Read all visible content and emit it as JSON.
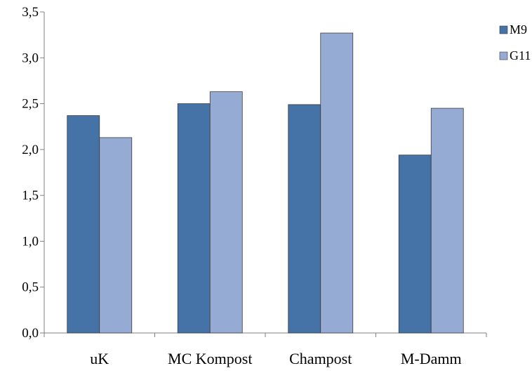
{
  "chart_data": {
    "type": "bar",
    "categories": [
      "uK",
      "MC Kompost",
      "Champost",
      "M-Damm"
    ],
    "series": [
      {
        "name": "M9",
        "values": [
          2.37,
          2.5,
          2.49,
          1.94
        ],
        "color": "#4572A7"
      },
      {
        "name": "G11",
        "values": [
          2.13,
          2.63,
          3.27,
          2.45
        ],
        "color": "#95ABD3"
      }
    ],
    "ylim": [
      0,
      3.5
    ],
    "yticks": [
      "0,0",
      "0,5",
      "1,0",
      "1,5",
      "2,0",
      "2,5",
      "3,0",
      "3,5"
    ],
    "grid": false,
    "legend_position": "top-right",
    "bar_border_color": "#3c3c3c",
    "axis_color": "#808080"
  }
}
